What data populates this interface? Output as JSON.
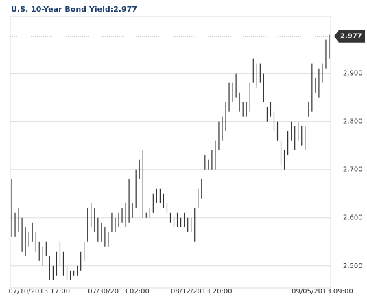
{
  "chart_data": {
    "type": "hilo",
    "title": "U.S. 10-Year Bond Yield:2.977",
    "categories": [
      null,
      null,
      null,
      null,
      null,
      null,
      null,
      null,
      "07/10/2013 17:00",
      null,
      null,
      null,
      null,
      null,
      null,
      null,
      null,
      null,
      null,
      null,
      null,
      null,
      null,
      null,
      null,
      null,
      null,
      null,
      null,
      null,
      null,
      "07/30/2013 02:00",
      null,
      null,
      null,
      null,
      null,
      null,
      null,
      null,
      null,
      null,
      null,
      null,
      null,
      null,
      null,
      null,
      null,
      null,
      null,
      null,
      null,
      null,
      null,
      "08/12/2013 20:00",
      null,
      null,
      null,
      null,
      null,
      null,
      null,
      null,
      null,
      null,
      null,
      null,
      null,
      null,
      null,
      null,
      null,
      null,
      null,
      null,
      null,
      null,
      null,
      null,
      null,
      null,
      null,
      null,
      null,
      null,
      null,
      null,
      null,
      null,
      "09/05/2013 09:00",
      null,
      null
    ],
    "high": [
      2.68,
      2.61,
      2.62,
      2.6,
      2.58,
      2.57,
      2.59,
      2.57,
      2.55,
      2.54,
      2.55,
      2.52,
      2.5,
      2.53,
      2.55,
      2.53,
      2.5,
      2.49,
      2.49,
      2.5,
      2.53,
      2.55,
      2.62,
      2.63,
      2.62,
      2.6,
      2.59,
      2.58,
      2.57,
      2.61,
      2.6,
      2.61,
      2.62,
      2.63,
      2.68,
      2.63,
      2.7,
      2.72,
      2.74,
      2.61,
      2.62,
      2.65,
      2.66,
      2.66,
      2.65,
      2.63,
      2.61,
      2.6,
      2.61,
      2.6,
      2.61,
      2.6,
      2.6,
      2.62,
      2.66,
      2.68,
      2.73,
      2.72,
      2.74,
      2.76,
      2.8,
      2.81,
      2.84,
      2.88,
      2.88,
      2.9,
      2.86,
      2.84,
      2.84,
      2.88,
      2.93,
      2.92,
      2.92,
      2.9,
      2.83,
      2.84,
      2.82,
      2.8,
      2.76,
      2.74,
      2.78,
      2.8,
      2.79,
      2.8,
      2.79,
      2.79,
      2.84,
      2.92,
      2.89,
      2.91,
      2.92,
      2.97,
      2.98
    ],
    "low": [
      2.56,
      2.56,
      2.57,
      2.53,
      2.52,
      2.54,
      2.55,
      2.53,
      2.51,
      2.5,
      2.52,
      2.47,
      2.47,
      2.48,
      2.5,
      2.48,
      2.47,
      2.47,
      2.48,
      2.48,
      2.49,
      2.51,
      2.55,
      2.58,
      2.57,
      2.55,
      2.55,
      2.54,
      2.54,
      2.57,
      2.57,
      2.58,
      2.59,
      2.58,
      2.59,
      2.6,
      2.62,
      2.68,
      2.6,
      2.6,
      2.6,
      2.61,
      2.63,
      2.63,
      2.62,
      2.61,
      2.59,
      2.58,
      2.58,
      2.58,
      2.58,
      2.57,
      2.57,
      2.55,
      2.62,
      2.64,
      2.7,
      2.7,
      2.7,
      2.7,
      2.74,
      2.76,
      2.78,
      2.82,
      2.84,
      2.85,
      2.82,
      2.81,
      2.81,
      2.82,
      2.88,
      2.87,
      2.88,
      2.84,
      2.8,
      2.81,
      2.78,
      2.76,
      2.71,
      2.7,
      2.73,
      2.76,
      2.74,
      2.76,
      2.75,
      2.74,
      2.81,
      2.82,
      2.86,
      2.85,
      2.88,
      2.91,
      2.93
    ],
    "color": "#333333",
    "last_value": 2.977,
    "ylim": [
      2.454,
      3.018
    ],
    "yticks": [
      {
        "value": 2.5,
        "label": "2.500"
      },
      {
        "value": 2.6,
        "label": "2.600"
      },
      {
        "value": 2.7,
        "label": "2.700"
      },
      {
        "value": 2.8,
        "label": "2.800"
      },
      {
        "value": 2.9,
        "label": "2.900"
      }
    ],
    "grid": true
  }
}
